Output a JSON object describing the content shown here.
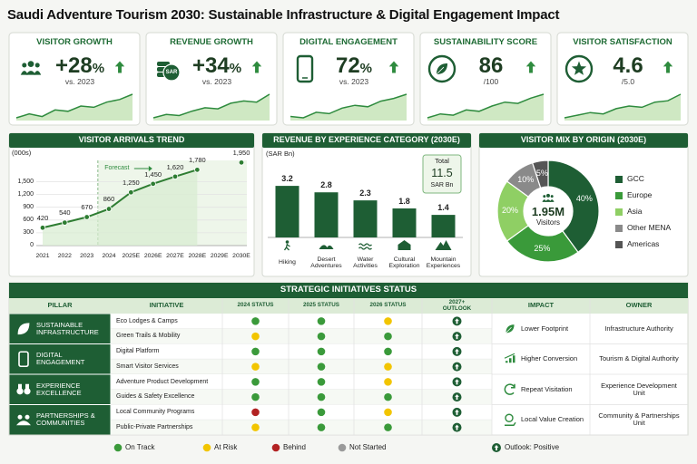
{
  "title": "Saudi Adventure Tourism 2030: Sustainable Infrastructure & Digital Engagement Impact",
  "kpis": [
    {
      "label": "VISITOR GROWTH",
      "value": "+28",
      "unit": "%",
      "note": "vs. 2023",
      "trend": [
        12,
        15,
        13,
        18,
        17,
        21,
        20,
        24,
        26,
        30
      ]
    },
    {
      "label": "REVENUE GROWTH",
      "value": "+34",
      "unit": "%",
      "note": "vs. 2023",
      "icon_text": "SAR",
      "trend": [
        10,
        13,
        12,
        16,
        19,
        18,
        23,
        25,
        24,
        31
      ]
    },
    {
      "label": "DIGITAL ENGAGEMENT",
      "value": "72",
      "unit": "%",
      "note": "vs. 2023",
      "trend": [
        14,
        13,
        17,
        16,
        20,
        22,
        21,
        25,
        27,
        30
      ]
    },
    {
      "label": "SUSTAINABILITY SCORE",
      "value": "86",
      "note": "/100",
      "trend": [
        11,
        14,
        13,
        17,
        16,
        20,
        23,
        22,
        26,
        29
      ]
    },
    {
      "label": "VISITOR SATISFACTION",
      "value": "4.6",
      "note": "/5.0",
      "trend": [
        12,
        14,
        16,
        15,
        19,
        21,
        20,
        24,
        25,
        30
      ]
    }
  ],
  "chart_data": [
    {
      "type": "line",
      "title": "VISITOR ARRIVALS TREND",
      "y_label": "(000s)",
      "categories": [
        "2021",
        "2022",
        "2023",
        "2024",
        "2025E",
        "2026E",
        "2027E",
        "2028E",
        "2029E",
        "2030E"
      ],
      "values": [
        420,
        540,
        670,
        860,
        1250,
        1450,
        1620,
        1780,
        null,
        1950
      ],
      "value_labels": [
        "420",
        "540",
        "670",
        "860",
        "1,250",
        "1,450",
        "1,620",
        "1,780",
        null,
        "1,950"
      ],
      "color": "#2e7d32",
      "ylim": [
        0,
        2000
      ],
      "yticks": [
        0,
        300,
        600,
        900,
        {
          "value": 1200,
          "label": "1,200"
        },
        {
          "value": 1500,
          "label": "1,500"
        }
      ],
      "grid": true,
      "annotation": "Forecast",
      "forecast_start": "2024"
    },
    {
      "type": "bar",
      "title": "REVENUE BY EXPERIENCE CATEGORY (2030E)",
      "y_label": "(SAR Bn)",
      "categories": [
        "Hiking",
        "Desert Adventures",
        "Water Activities",
        "Cultural Exploration",
        "Mountain Experiences"
      ],
      "values": [
        3.2,
        2.8,
        2.3,
        1.8,
        1.4
      ],
      "color": "#1e5e34",
      "ylim": [
        0,
        3.6
      ],
      "total": {
        "label": "Total",
        "value": 11.5,
        "unit": "SAR Bn"
      }
    },
    {
      "type": "pie",
      "title": "VISITOR MIX BY ORIGIN (2030E)",
      "categories": [
        "GCC",
        "Europe",
        "Asia",
        "Other MENA",
        "Americas"
      ],
      "values": [
        40,
        25,
        20,
        10,
        5
      ],
      "value_labels": [
        "40%",
        "25%",
        "20%",
        "10%",
        "5%"
      ],
      "colors": [
        "#1e5e34",
        "#3a9a3a",
        "#8fcf64",
        "#8a8a8a",
        "#555555"
      ],
      "center": {
        "value": "1.95M",
        "label": "Visitors"
      }
    }
  ],
  "table": {
    "title": "STRATEGIC INITIATIVES STATUS",
    "columns": [
      "PILLAR",
      "INITIATIVE",
      "2024 STATUS",
      "2025 STATUS",
      "2026 STATUS",
      "2027+ OUTLOOK",
      "IMPACT",
      "OWNER"
    ],
    "pillars": [
      {
        "name": "SUSTAINABLE INFRASTRUCTURE",
        "impact": "Lower Footprint",
        "owner": "Infrastructure Authority",
        "initiatives": [
          {
            "name": "Eco Lodges & Camps",
            "status": [
              "On Track",
              "On Track",
              "At Risk"
            ],
            "outlook": "Positive"
          },
          {
            "name": "Green Trails & Mobility",
            "status": [
              "At Risk",
              "On Track",
              "On Track"
            ],
            "outlook": "Positive"
          }
        ]
      },
      {
        "name": "DIGITAL ENGAGEMENT",
        "impact": "Higher Conversion",
        "owner": "Tourism & Digital Authority",
        "initiatives": [
          {
            "name": "Digital Platform",
            "status": [
              "On Track",
              "On Track",
              "On Track"
            ],
            "outlook": "Positive"
          },
          {
            "name": "Smart Visitor Services",
            "status": [
              "At Risk",
              "On Track",
              "At Risk"
            ],
            "outlook": "Positive"
          }
        ]
      },
      {
        "name": "EXPERIENCE EXCELLENCE",
        "impact": "Repeat Visitation",
        "owner": "Experience Development Unit",
        "initiatives": [
          {
            "name": "Adventure Product Development",
            "status": [
              "On Track",
              "On Track",
              "At Risk"
            ],
            "outlook": "Positive"
          },
          {
            "name": "Guides & Safety Excellence",
            "status": [
              "On Track",
              "On Track",
              "On Track"
            ],
            "outlook": "Positive"
          }
        ]
      },
      {
        "name": "PARTNERSHIPS & COMMUNITIES",
        "impact": "Local Value Creation",
        "owner": "Community & Partnerships Unit",
        "initiatives": [
          {
            "name": "Local Community Programs",
            "status": [
              "Behind",
              "On Track",
              "At Risk"
            ],
            "outlook": "Positive"
          },
          {
            "name": "Public-Private Partnerships",
            "status": [
              "At Risk",
              "On Track",
              "On Track"
            ],
            "outlook": "Positive"
          }
        ]
      }
    ]
  },
  "legend": [
    {
      "label": "On Track",
      "color": "#3a9a3a"
    },
    {
      "label": "At Risk",
      "color": "#f2c500"
    },
    {
      "label": "Behind",
      "color": "#b22222"
    },
    {
      "label": "Not Started",
      "color": "#9a9a9a"
    }
  ],
  "outlook_legend": "Outlook: Positive"
}
